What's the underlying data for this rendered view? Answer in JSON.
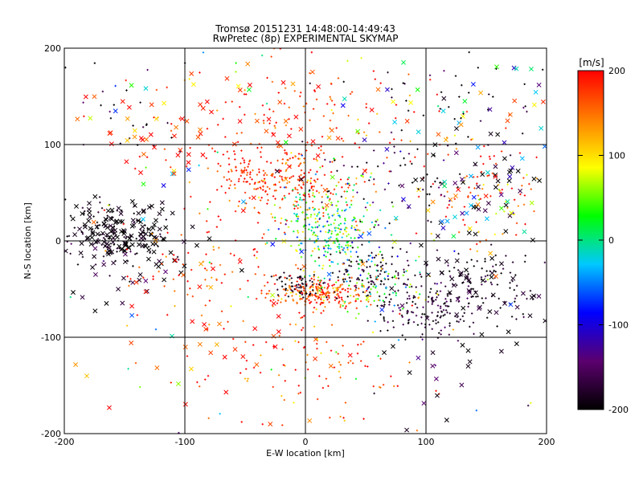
{
  "chart_data": {
    "type": "scatter",
    "title": "Tromsø 20151231 14:48:00-14:49:43",
    "subtitle": "RwPretec (8p) EXPERIMENTAL SKYMAP",
    "xlabel": "E-W location [km]",
    "ylabel": "N-S location [km]",
    "xlim": [
      -200,
      200
    ],
    "ylim": [
      -200,
      200
    ],
    "xticks": [
      "-200",
      "-100",
      "0",
      "100",
      "200"
    ],
    "yticks": [
      "-200",
      "-100",
      "0",
      "100",
      "200"
    ],
    "grid": true,
    "markers": [
      "+",
      "x"
    ],
    "colorbar": {
      "label": "[m/s]",
      "range": [
        -200,
        200
      ],
      "ticks": [
        "200",
        "100",
        "0",
        "-100",
        "-200"
      ],
      "colormap": [
        "#000000",
        "#5b006e",
        "#0000ff",
        "#00c8ff",
        "#00ff00",
        "#ffff00",
        "#ff7f00",
        "#ff0000"
      ]
    },
    "clusters": [
      {
        "center": [
          -20,
          65
        ],
        "spread": [
          30,
          18
        ],
        "velocity": 185,
        "count": 260,
        "marker": "+",
        "jitter": 30
      },
      {
        "center": [
          10,
          -55
        ],
        "spread": [
          20,
          8
        ],
        "velocity": 175,
        "count": 220,
        "marker": "+",
        "jitter": 40
      },
      {
        "center": [
          -5,
          -45
        ],
        "spread": [
          10,
          6
        ],
        "velocity": -190,
        "count": 60,
        "marker": "+",
        "jitter": 10
      },
      {
        "center": [
          20,
          5
        ],
        "spread": [
          20,
          20
        ],
        "velocity": 20,
        "count": 260,
        "marker": "+",
        "jitter": 60
      },
      {
        "center": [
          15,
          40
        ],
        "spread": [
          25,
          25
        ],
        "velocity": 60,
        "count": 80,
        "marker": "+",
        "jitter": 60
      },
      {
        "center": [
          55,
          -35
        ],
        "spread": [
          18,
          14
        ],
        "velocity": -190,
        "count": 110,
        "marker": "+",
        "jitter": 20
      },
      {
        "center": [
          60,
          -45
        ],
        "spread": [
          22,
          16
        ],
        "velocity": 40,
        "count": 80,
        "marker": "+",
        "jitter": 70
      },
      {
        "center": [
          100,
          -75
        ],
        "spread": [
          22,
          15
        ],
        "velocity": -180,
        "count": 140,
        "marker": "+",
        "jitter": 20
      },
      {
        "center": [
          145,
          -45
        ],
        "spread": [
          25,
          20
        ],
        "velocity": -190,
        "count": 110,
        "marker": "+",
        "jitter": 20
      },
      {
        "center": [
          145,
          -45
        ],
        "spread": [
          25,
          20
        ],
        "velocity": -190,
        "count": 40,
        "marker": "x",
        "jitter": 20
      },
      {
        "center": [
          -155,
          10
        ],
        "spread": [
          25,
          15
        ],
        "velocity": -195,
        "count": 130,
        "marker": "x",
        "jitter": 10
      },
      {
        "center": [
          -160,
          5
        ],
        "spread": [
          22,
          18
        ],
        "velocity": -190,
        "count": 110,
        "marker": "+",
        "jitter": 15
      },
      {
        "center": [
          -140,
          -30
        ],
        "spread": [
          30,
          20
        ],
        "velocity": -190,
        "count": 40,
        "marker": "x",
        "jitter": 30
      },
      {
        "center": [
          -80,
          -40
        ],
        "spread": [
          40,
          30
        ],
        "velocity": 180,
        "count": 90,
        "marker": "+",
        "jitter": 40
      },
      {
        "center": [
          150,
          45
        ],
        "spread": [
          30,
          30
        ],
        "velocity": 170,
        "count": 90,
        "marker": "+",
        "jitter": 60
      },
      {
        "center": [
          155,
          60
        ],
        "spread": [
          30,
          25
        ],
        "velocity": -190,
        "count": 45,
        "marker": "x",
        "jitter": 30
      },
      {
        "center": [
          130,
          40
        ],
        "spread": [
          30,
          20
        ],
        "velocity": 40,
        "count": 30,
        "marker": "x",
        "jitter": 120
      },
      {
        "center": [
          80,
          60
        ],
        "spread": [
          30,
          25
        ],
        "velocity": -180,
        "count": 70,
        "marker": "+",
        "jitter": 40
      },
      {
        "center": [
          0,
          130
        ],
        "spread": [
          70,
          35
        ],
        "velocity": 185,
        "count": 140,
        "marker": "+",
        "jitter": 40
      },
      {
        "center": [
          -60,
          120
        ],
        "spread": [
          60,
          30
        ],
        "velocity": 185,
        "count": 50,
        "marker": "x",
        "jitter": 30
      },
      {
        "center": [
          0,
          -130
        ],
        "spread": [
          60,
          40
        ],
        "velocity": 180,
        "count": 110,
        "marker": "+",
        "jitter": 40
      },
      {
        "center": [
          130,
          140
        ],
        "spread": [
          40,
          30
        ],
        "velocity": 60,
        "count": 40,
        "marker": "x",
        "jitter": 150
      },
      {
        "center": [
          130,
          140
        ],
        "spread": [
          40,
          30
        ],
        "velocity": -190,
        "count": 40,
        "marker": "+",
        "jitter": 30
      },
      {
        "center": [
          -150,
          140
        ],
        "spread": [
          30,
          30
        ],
        "velocity": -190,
        "count": 25,
        "marker": "+",
        "jitter": 30
      },
      {
        "center": [
          -130,
          130
        ],
        "spread": [
          30,
          30
        ],
        "velocity": 180,
        "count": 25,
        "marker": "x",
        "jitter": 60
      },
      {
        "center": [
          0,
          0
        ],
        "spread": [
          200,
          200
        ],
        "velocity": 0,
        "count": 120,
        "marker": "x",
        "jitter": 200
      },
      {
        "center": [
          0,
          0
        ],
        "spread": [
          200,
          200
        ],
        "velocity": 0,
        "count": 120,
        "marker": "+",
        "jitter": 200
      },
      {
        "center": [
          140,
          -140
        ],
        "spread": [
          40,
          40
        ],
        "velocity": -190,
        "count": 30,
        "marker": "x",
        "jitter": 30
      },
      {
        "center": [
          -50,
          -90
        ],
        "spread": [
          60,
          60
        ],
        "velocity": 180,
        "count": 40,
        "marker": "x",
        "jitter": 40
      }
    ]
  }
}
